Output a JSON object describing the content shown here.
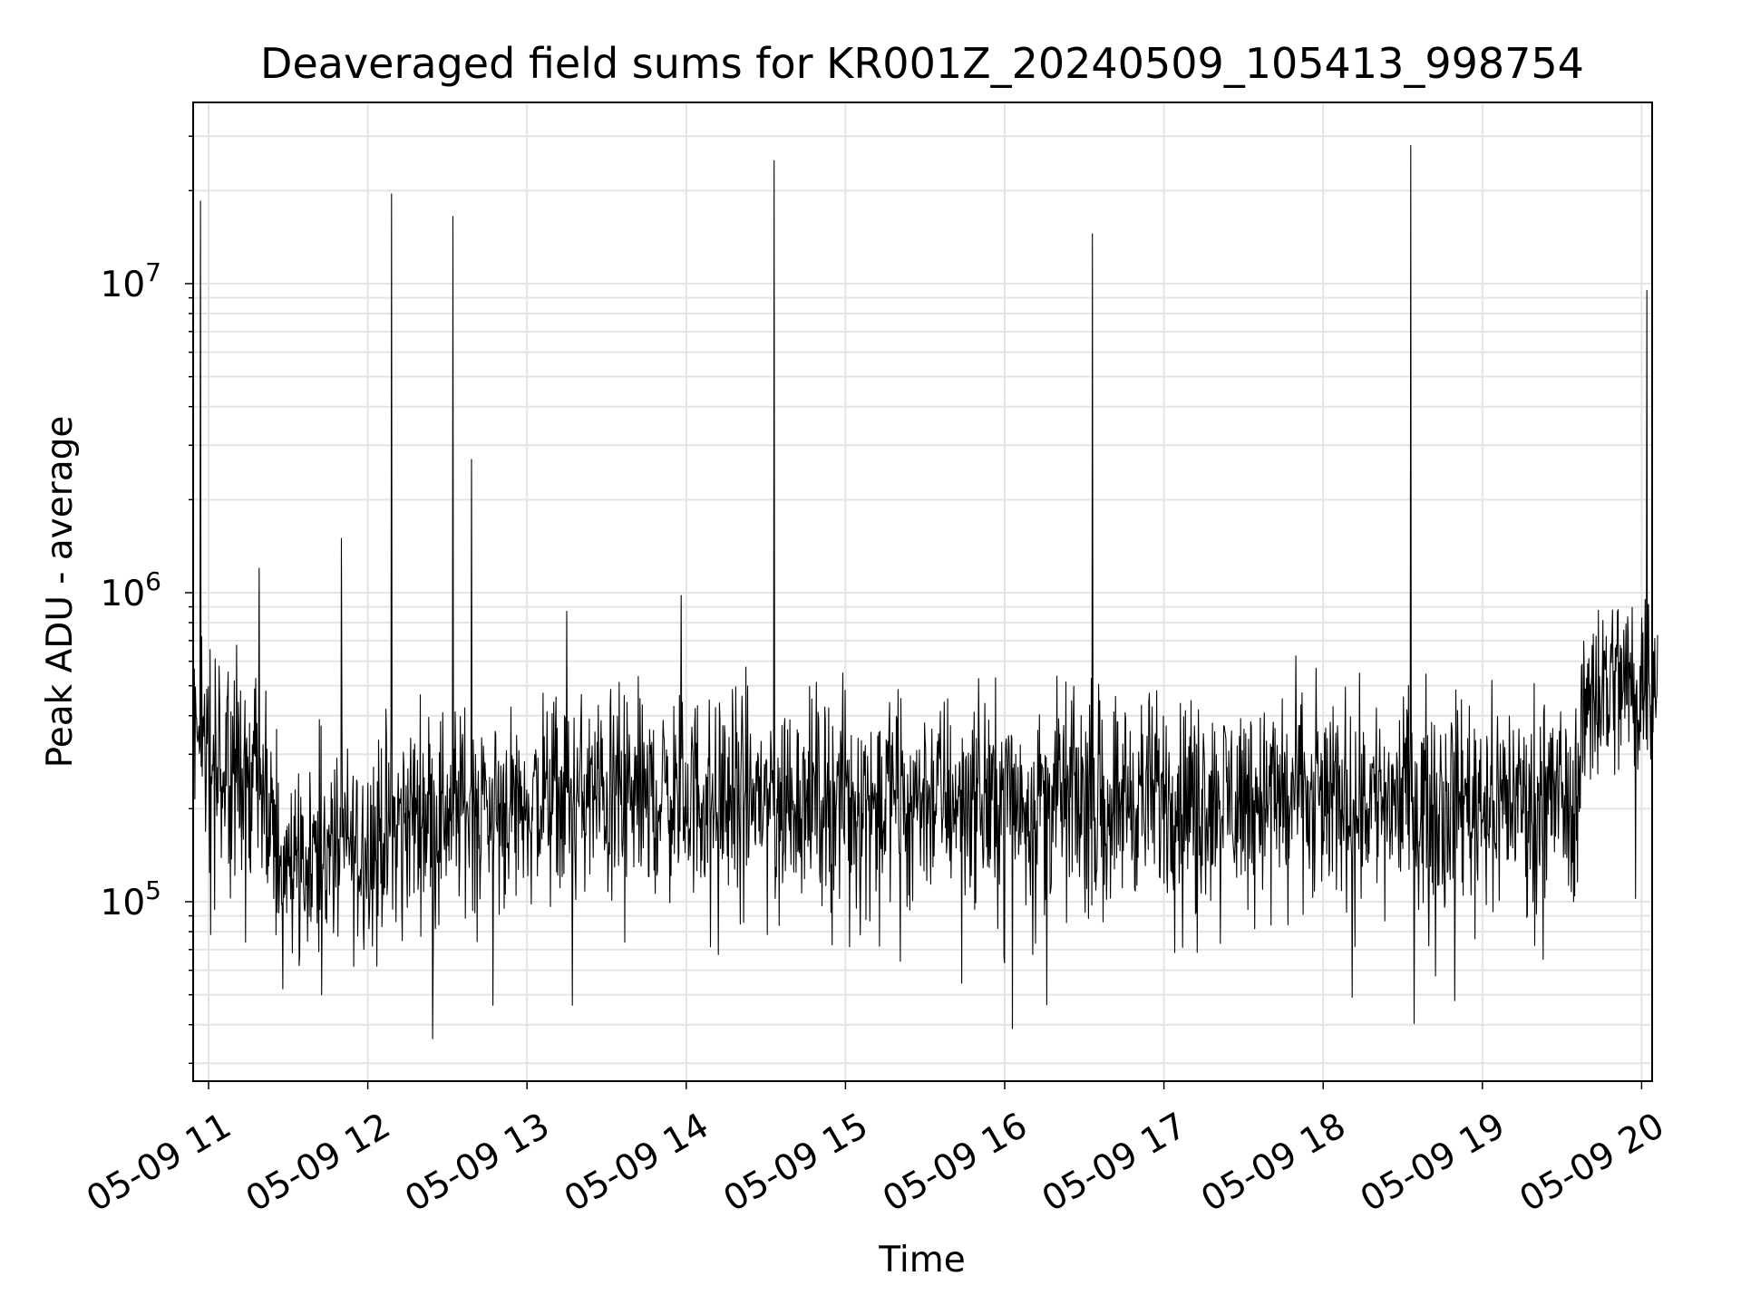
{
  "chart_data": {
    "type": "line",
    "title": "Deaveraged field sums for KR001Z_20240509_105413_998754",
    "xlabel": "Time",
    "ylabel": "Peak ADU - average",
    "y_scale": "log",
    "ylim": [
      26000,
      38000000
    ],
    "xlim": [
      "05-09 10:54",
      "05-09 20:06"
    ],
    "grid": true,
    "line_color": "#000000",
    "x_ticks": [
      "05-09 11",
      "05-09 12",
      "05-09 13",
      "05-09 14",
      "05-09 15",
      "05-09 16",
      "05-09 17",
      "05-09 18",
      "05-09 19",
      "05-09 20"
    ],
    "y_ticks": [
      {
        "value": 100000,
        "base": "10",
        "exp": "5"
      },
      {
        "value": 1000000,
        "base": "10",
        "exp": "6"
      },
      {
        "value": 10000000,
        "base": "10",
        "exp": "7"
      }
    ],
    "baseline": [
      {
        "time": "05-09 10:54",
        "value": 350000
      },
      {
        "time": "05-09 11:20",
        "value": 240000
      },
      {
        "time": "05-09 11:25",
        "value": 140000
      },
      {
        "time": "05-09 11:55",
        "value": 150000
      },
      {
        "time": "05-09 12:20",
        "value": 200000
      },
      {
        "time": "05-09 13:30",
        "value": 220000
      },
      {
        "time": "05-09 19:35",
        "value": 220000
      },
      {
        "time": "05-09 19:40",
        "value": 500000
      },
      {
        "time": "05-09 20:06",
        "value": 520000
      }
    ],
    "spikes": [
      {
        "time": "05-09 10:57",
        "value": 18500000
      },
      {
        "time": "05-09 11:19",
        "value": 1200000
      },
      {
        "time": "05-09 11:50",
        "value": 1500000
      },
      {
        "time": "05-09 12:09",
        "value": 19500000
      },
      {
        "time": "05-09 12:32",
        "value": 16500000
      },
      {
        "time": "05-09 12:39",
        "value": 2700000
      },
      {
        "time": "05-09 13:15",
        "value": 870000
      },
      {
        "time": "05-09 13:58",
        "value": 980000
      },
      {
        "time": "05-09 14:33",
        "value": 25000000
      },
      {
        "time": "05-09 16:33",
        "value": 14500000
      },
      {
        "time": "05-09 18:33",
        "value": 28000000
      },
      {
        "time": "05-09 20:02",
        "value": 9500000
      }
    ]
  }
}
